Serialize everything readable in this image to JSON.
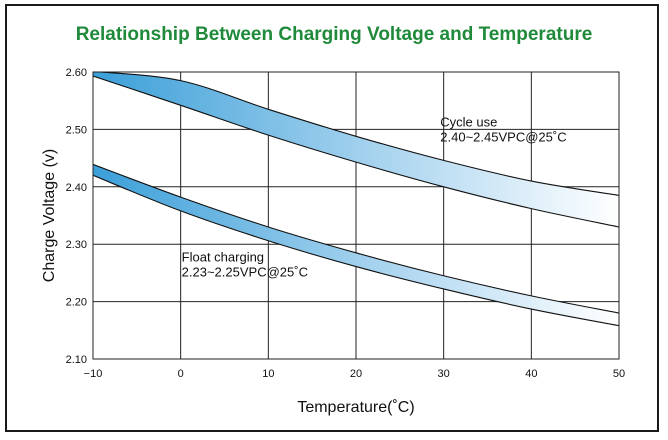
{
  "chart_data": {
    "type": "area",
    "title": "Relationship Between Charging Voltage and Temperature",
    "xlabel": "Temperature(˚C)",
    "ylabel": "Charge Voltage  (v)",
    "xlim": [
      -10,
      50
    ],
    "ylim": [
      2.1,
      2.6
    ],
    "x_ticks": [
      -10,
      0,
      10,
      20,
      30,
      40,
      50
    ],
    "x_tick_labels": [
      "−10",
      "0",
      "10",
      "20",
      "30",
      "40",
      "50"
    ],
    "y_ticks": [
      2.1,
      2.2,
      2.3,
      2.4,
      2.5,
      2.6
    ],
    "y_tick_labels": [
      "2.10",
      "2.20",
      "2.30",
      "2.40",
      "2.50",
      "2.60"
    ],
    "grid": true,
    "x": [
      -10,
      0,
      10,
      20,
      30,
      40,
      50
    ],
    "series": [
      {
        "upper": [
          2.601,
          2.585,
          2.535,
          2.488,
          2.446,
          2.41,
          2.385
        ],
        "lower": [
          2.593,
          2.542,
          2.49,
          2.443,
          2.4,
          2.362,
          2.33
        ],
        "color": "#3b9fd8",
        "annotation": [
          "Cycle use",
          "2.40~2.45VPC@25˚C"
        ],
        "annotation_at": [
          29.5,
          2.505
        ]
      },
      {
        "upper": [
          2.439,
          2.382,
          2.33,
          2.285,
          2.245,
          2.21,
          2.18
        ],
        "lower": [
          2.42,
          2.358,
          2.306,
          2.261,
          2.222,
          2.187,
          2.158
        ],
        "color": "#3b9fd8",
        "annotation": [
          "Float charging",
          "2.23~2.25VPC@25˚C"
        ],
        "annotation_at": [
          0,
          2.27
        ]
      }
    ]
  }
}
